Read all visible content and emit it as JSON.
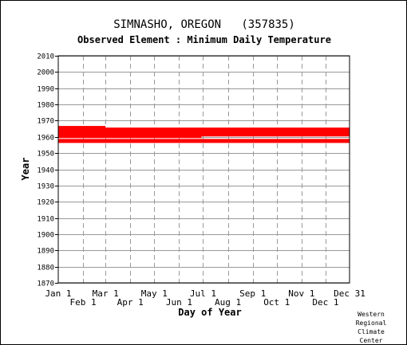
{
  "chart_data": {
    "type": "scatter",
    "title": "SIMNASHO, OREGON   (357835)",
    "subtitle": "Observed Element : Minimum Daily Temperature",
    "xlabel": "Day of Year",
    "ylabel": "Year",
    "xlim": [
      1,
      365
    ],
    "ylim": [
      1870,
      2010
    ],
    "yticks": [
      1870,
      1880,
      1890,
      1900,
      1910,
      1920,
      1930,
      1940,
      1950,
      1960,
      1970,
      1980,
      1990,
      2000,
      2010
    ],
    "xticks_top": [
      {
        "label": "Jan 1",
        "day": 1
      },
      {
        "label": "Mar 1",
        "day": 60
      },
      {
        "label": "May 1",
        "day": 121
      },
      {
        "label": "Jul 1",
        "day": 182
      },
      {
        "label": "Sep 1",
        "day": 244
      },
      {
        "label": "Nov 1",
        "day": 305
      },
      {
        "label": "Dec 31",
        "day": 365
      }
    ],
    "xticks_bottom": [
      {
        "label": "Feb 1",
        "day": 32
      },
      {
        "label": "Apr 1",
        "day": 91
      },
      {
        "label": "Jun 1",
        "day": 152
      },
      {
        "label": "Aug 1",
        "day": 213
      },
      {
        "label": "Oct 1",
        "day": 274
      },
      {
        "label": "Dec 1",
        "day": 335
      }
    ],
    "grid": true,
    "series_color": "#ff0000",
    "series": [
      {
        "values": [
          {
            "year": 1957,
            "start": 1,
            "end": 365
          },
          {
            "year": 1958,
            "start": 1,
            "end": 365
          },
          {
            "year": 1960,
            "start": 1,
            "end": 180
          },
          {
            "year": 1961,
            "start": 1,
            "end": 365
          },
          {
            "year": 1962,
            "start": 1,
            "end": 365
          },
          {
            "year": 1963,
            "start": 1,
            "end": 365
          },
          {
            "year": 1964,
            "start": 1,
            "end": 365
          },
          {
            "year": 1965,
            "start": 1,
            "end": 365
          },
          {
            "year": 1966,
            "start": 1,
            "end": 60
          }
        ]
      }
    ]
  },
  "credit": [
    "Western",
    "Regional",
    "Climate",
    "Center"
  ]
}
